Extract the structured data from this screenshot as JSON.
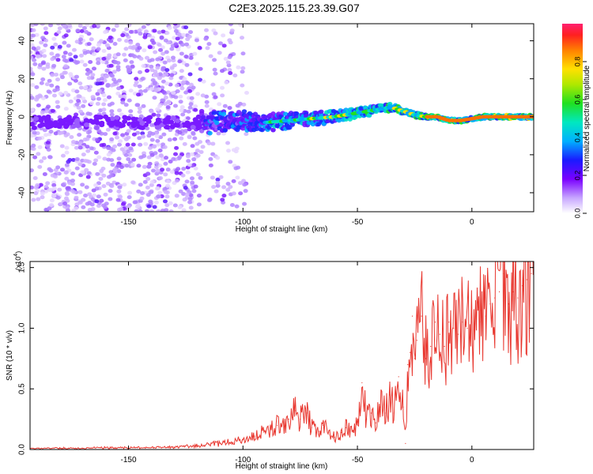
{
  "title": "C2E3.2025.115.23.39.G07",
  "chart_data": [
    {
      "type": "heatmap",
      "xlabel": "Height of straight line (km)",
      "ylabel": "Frequency (Hz)",
      "xlim": [
        -193,
        27
      ],
      "ylim": [
        -50,
        49
      ],
      "xticks": [
        -150,
        -100,
        -50,
        0
      ],
      "xtick_labels": [
        "-150",
        "-100",
        "-50",
        "0"
      ],
      "yticks": [
        -40,
        -20,
        0,
        20,
        40
      ],
      "ytick_labels": [
        "-40",
        "-20",
        "0",
        "20",
        "40"
      ],
      "colorbar": {
        "label": "Normalized spectral amplitude",
        "range": [
          0,
          1
        ],
        "ticks": [
          0.0,
          0.2,
          0.4,
          0.6,
          0.8
        ],
        "tick_labels": [
          "0.0",
          "0.2",
          "0.4",
          "0.6",
          "0.8"
        ]
      },
      "ridge_frequency": {
        "x": [
          -115,
          -110,
          -100,
          -90,
          -80,
          -70,
          -60,
          -50,
          -40,
          -35,
          -30,
          -25,
          -20,
          -15,
          -10,
          -5,
          0,
          5,
          10,
          15,
          20,
          25
        ],
        "y": [
          -3,
          -2,
          -2,
          -3,
          -2,
          -1,
          0,
          2,
          4,
          5,
          3,
          1,
          0,
          0,
          -2,
          -2,
          -1,
          0,
          0,
          0,
          0,
          0
        ]
      }
    },
    {
      "type": "line",
      "xlabel": "Height of straight line (km)",
      "ylabel": "SNR (10 * v/v)",
      "ymultiplier": "(x10",
      "ymultiplier_exp": "4",
      "ymultiplier_close": ")",
      "xlim": [
        -193,
        27
      ],
      "ylim": [
        0,
        1.55
      ],
      "xticks": [
        -150,
        -100,
        -50,
        0
      ],
      "xtick_labels": [
        "-150",
        "-100",
        "-50",
        "0"
      ],
      "yticks": [
        0,
        0.5,
        1.0,
        1.5
      ],
      "ytick_labels": [
        "0.0",
        "0.5",
        "1.0",
        "1.5"
      ],
      "color": "#e8362e",
      "series": [
        {
          "x": [
            -193,
            -180,
            -170,
            -160,
            -150,
            -140,
            -130,
            -120,
            -115,
            -110,
            -105,
            -100,
            -95,
            -90,
            -85,
            -80,
            -77,
            -75,
            -72,
            -70,
            -67,
            -65,
            -62,
            -60,
            -57,
            -55,
            -52,
            -50,
            -48,
            -46,
            -44,
            -42,
            -40,
            -38,
            -36,
            -34,
            -32,
            -30,
            -29,
            -28,
            -27,
            -26,
            -25,
            -24,
            -22,
            -20,
            -18,
            -16,
            -14,
            -12,
            -10,
            -8,
            -6,
            -4,
            -2,
            0,
            2,
            4,
            6,
            8,
            10,
            12,
            14,
            16,
            18,
            20,
            22,
            24,
            26,
            27
          ],
          "y": [
            0.01,
            0.01,
            0.01,
            0.015,
            0.015,
            0.015,
            0.02,
            0.03,
            0.04,
            0.05,
            0.06,
            0.08,
            0.11,
            0.15,
            0.2,
            0.25,
            0.32,
            0.25,
            0.3,
            0.18,
            0.15,
            0.2,
            0.12,
            0.1,
            0.14,
            0.18,
            0.16,
            0.2,
            0.55,
            0.25,
            0.3,
            0.22,
            0.35,
            0.3,
            0.45,
            0.3,
            0.6,
            0.35,
            0.05,
            0.7,
            0.8,
            1.1,
            0.75,
            0.9,
            1.1,
            0.75,
            0.85,
            1.05,
            0.95,
            0.85,
            1.05,
            1.0,
            0.95,
            1.05,
            1.0,
            1.05,
            1.15,
            1.05,
            1.1,
            1.2,
            1.25,
            1.3,
            1.45,
            1.2,
            1.3,
            1.25,
            1.35,
            1.4,
            1.45,
            1.45
          ]
        }
      ]
    }
  ]
}
